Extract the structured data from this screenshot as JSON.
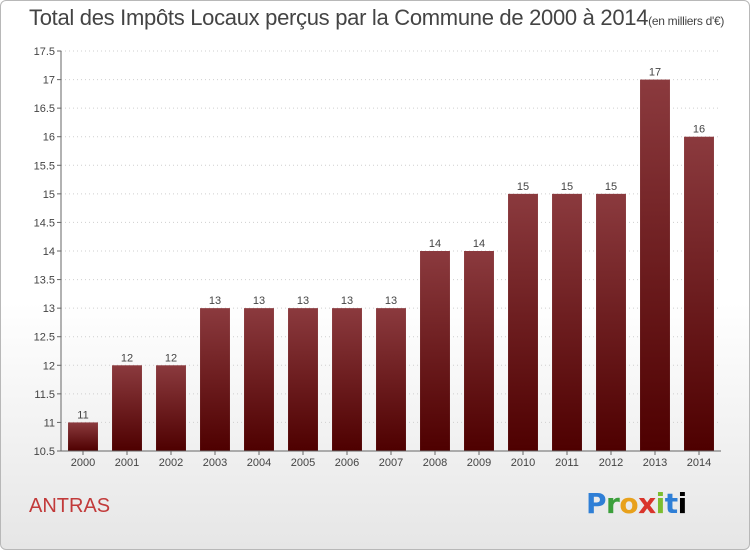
{
  "title": "Total des Impôts Locaux perçus par la Commune de 2000 à 2014",
  "unit": "(en milliers d'€)",
  "commune": "ANTRAS",
  "brand": [
    "P",
    "r",
    "o",
    "x",
    "i",
    "t",
    "i"
  ],
  "colors": {
    "bar_top": "#8b3a3e",
    "bar_bottom": "#4e0000",
    "axis": "#666666"
  },
  "chart_data": {
    "type": "bar",
    "title": "Total des Impôts Locaux perçus par la Commune de 2000 à 2014",
    "xlabel": "",
    "ylabel": "(en milliers d'€)",
    "ylim": [
      10.5,
      17.5
    ],
    "yticks": [
      10.5,
      11,
      11.5,
      12,
      12.5,
      13,
      13.5,
      14,
      14.5,
      15,
      15.5,
      16,
      16.5,
      17,
      17.5
    ],
    "ytick_labels": [
      "10.5",
      "11",
      "11.5",
      "12",
      "12.5",
      "13",
      "13.5",
      "14",
      "14.5",
      "15",
      "15.5",
      "16",
      "16.5",
      "17",
      "17.5"
    ],
    "categories": [
      "2000",
      "2001",
      "2002",
      "2003",
      "2004",
      "2005",
      "2006",
      "2007",
      "2008",
      "2009",
      "2010",
      "2011",
      "2012",
      "2013",
      "2014"
    ],
    "values": [
      11,
      12,
      12,
      13,
      13,
      13,
      13,
      13,
      14,
      14,
      15,
      15,
      15,
      17,
      16
    ],
    "value_labels": [
      "11",
      "12",
      "12",
      "13",
      "13",
      "13",
      "13",
      "13",
      "14",
      "14",
      "15",
      "15",
      "15",
      "17",
      "16"
    ]
  }
}
